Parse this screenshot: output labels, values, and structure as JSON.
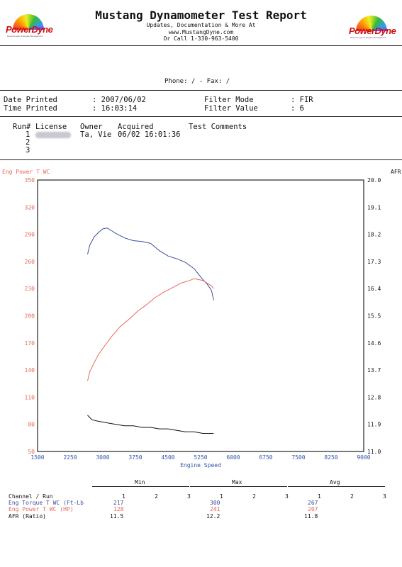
{
  "header": {
    "brand": "PowerDyne",
    "brand_tagline": "Dynamometer & Engine Management",
    "title": "Mustang Dynamometer Test Report",
    "line1": "Updates, Documentation & More At",
    "line2": "www.MustangDyne.com",
    "line3": "Or Call 1-330-963-5400"
  },
  "contact": {
    "phone_label": "Phone:",
    "phone_value": "/",
    "fax_label": "- Fax:",
    "fax_value": "/"
  },
  "info": {
    "date_label": "Date Printed",
    "date_value": ": 2007/06/02",
    "time_label": "Time Printed",
    "time_value": ": 16:03:14",
    "filter_mode_label": "Filter Mode",
    "filter_mode_value": ": FIR",
    "filter_value_label": "Filter Value",
    "filter_value_value": ": 6"
  },
  "runs": {
    "headers": {
      "run": "Run#",
      "license": "License",
      "owner": "Owner",
      "acquired": "Acquired",
      "comments": "Test Comments"
    },
    "rows": [
      {
        "run": "1",
        "owner": "Ta, Vie",
        "acquired": "06/02 16:01:36"
      },
      {
        "run": "2"
      },
      {
        "run": "3"
      }
    ]
  },
  "chart_data": {
    "type": "line",
    "left_axis_label": "Eng Power T WC",
    "right_axis_label": "AFR",
    "xlabel": "Engine Speed",
    "xlim": [
      1500,
      9000
    ],
    "x_ticks": [
      "1500",
      "2250",
      "3000",
      "3750",
      "4500",
      "5250",
      "6000",
      "6750",
      "7500",
      "8250",
      "9000"
    ],
    "ylim_left": [
      50,
      350
    ],
    "y_ticks_left": [
      "350",
      "320",
      "290",
      "260",
      "230",
      "200",
      "170",
      "140",
      "110",
      "80",
      "50"
    ],
    "ylim_right": [
      11.0,
      20.0
    ],
    "y_ticks_right": [
      "20.0",
      "19.1",
      "18.2",
      "17.3",
      "16.4",
      "15.5",
      "14.6",
      "13.7",
      "12.8",
      "11.9",
      "11.0"
    ],
    "grid": false,
    "colors": {
      "torque": "#3b4fa0",
      "power": "#e8685a",
      "afr": "#111111",
      "axis_blue": "#3355aa"
    },
    "series": [
      {
        "key": "torque",
        "axis": "left",
        "x": [
          2650,
          2700,
          2800,
          2900,
          3000,
          3100,
          3200,
          3300,
          3500,
          3700,
          3900,
          4100,
          4300,
          4500,
          4700,
          4900,
          5100,
          5300,
          5400,
          5500,
          5550
        ],
        "y": [
          268,
          278,
          287,
          292,
          296,
          297,
          294,
          291,
          286,
          283,
          282,
          280,
          272,
          266,
          263,
          259,
          252,
          240,
          235,
          228,
          217
        ]
      },
      {
        "key": "power",
        "axis": "left",
        "x": [
          2650,
          2700,
          2800,
          2900,
          3000,
          3200,
          3400,
          3600,
          3800,
          4000,
          4200,
          4400,
          4600,
          4800,
          5000,
          5100,
          5200,
          5300,
          5400,
          5500,
          5550
        ],
        "y": [
          128,
          138,
          148,
          157,
          164,
          177,
          188,
          196,
          205,
          212,
          220,
          226,
          231,
          236,
          239,
          241,
          240,
          239,
          236,
          233,
          230
        ]
      },
      {
        "key": "afr",
        "axis": "right",
        "x": [
          2650,
          2750,
          2900,
          3100,
          3300,
          3500,
          3700,
          3900,
          4100,
          4300,
          4500,
          4700,
          4900,
          5100,
          5300,
          5500,
          5550
        ],
        "y": [
          12.2,
          12.05,
          12.0,
          11.95,
          11.9,
          11.85,
          11.85,
          11.8,
          11.8,
          11.75,
          11.75,
          11.7,
          11.65,
          11.65,
          11.6,
          11.6,
          11.6
        ]
      }
    ]
  },
  "summary": {
    "group_min": "Min",
    "group_max": "Max",
    "group_avg": "Avg",
    "channel_header": "Channel / Run",
    "run_cols": [
      "1",
      "2",
      "3"
    ],
    "rows": [
      {
        "name": "Eng Torque T WC (Ft-Lb",
        "min": "217",
        "max": "300",
        "avg": "267",
        "color": "#3b4fa0"
      },
      {
        "name": "Eng Power T WC (HP)",
        "min": "128",
        "max": "241",
        "avg": "207",
        "color": "#e8685a"
      },
      {
        "name": "AFR (Ratio)",
        "min": "11.5",
        "max": "12.2",
        "avg": "11.8",
        "color": "#111111"
      }
    ]
  }
}
